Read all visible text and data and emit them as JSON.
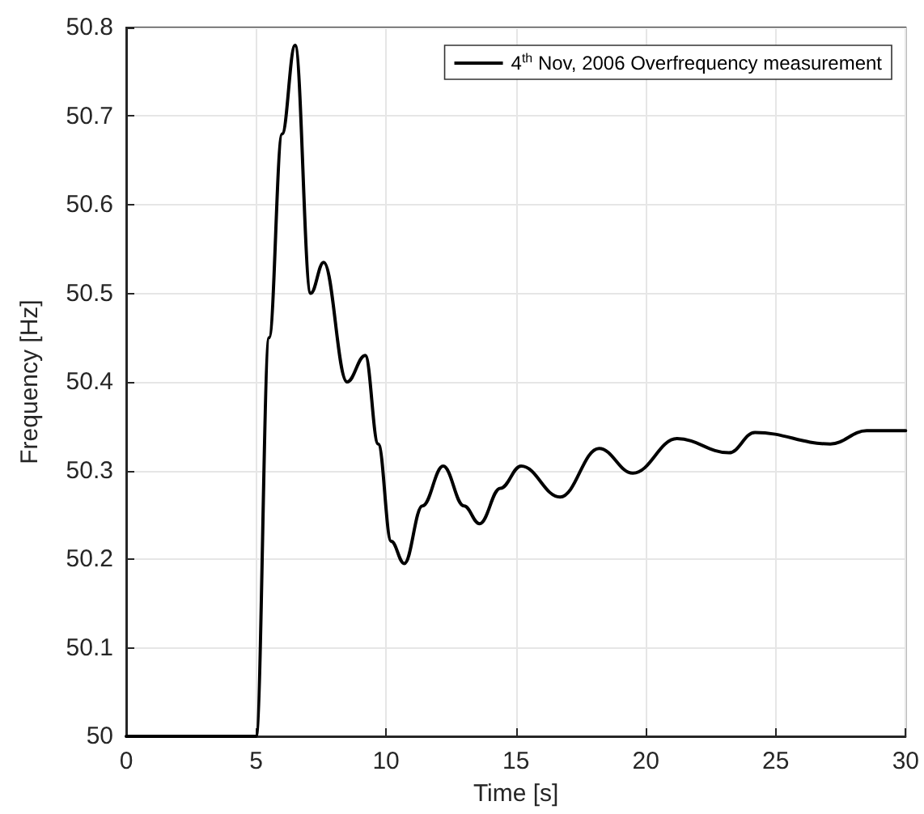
{
  "chart_data": {
    "type": "line",
    "xlabel": "Time [s]",
    "ylabel": "Frequency [Hz]",
    "series": [
      {
        "name": "4$^{th}$ Nov, 2006 Overfrequency measurement",
        "color": "#000000",
        "x": [
          0,
          5,
          5.5,
          6,
          6.5,
          7.1,
          7.6,
          8.5,
          9.2,
          9.7,
          10.2,
          10.7,
          11.4,
          12.2,
          13,
          13.6,
          14.4,
          15.2,
          16.7,
          18.2,
          19.5,
          21.2,
          23.2,
          24.2,
          27.1,
          28.5,
          30
        ],
        "values": [
          50,
          50,
          50.45,
          50.68,
          50.78,
          50.5,
          50.535,
          50.4,
          50.43,
          50.33,
          50.22,
          50.195,
          50.26,
          50.305,
          50.26,
          50.24,
          50.28,
          50.305,
          50.27,
          50.325,
          50.297,
          50.336,
          50.32,
          50.343,
          50.33,
          50.345,
          50.345
        ]
      }
    ],
    "xlim": [
      0,
      30
    ],
    "xticks": [
      0,
      5,
      10,
      15,
      20,
      25,
      30
    ],
    "ylim": [
      50,
      50.8
    ],
    "yticks": [
      50,
      50.1,
      50.2,
      50.3,
      50.4,
      50.5,
      50.6,
      50.7,
      50.8
    ],
    "grid": true,
    "legend": "top right",
    "marker": "none",
    "line_style": "solid"
  }
}
